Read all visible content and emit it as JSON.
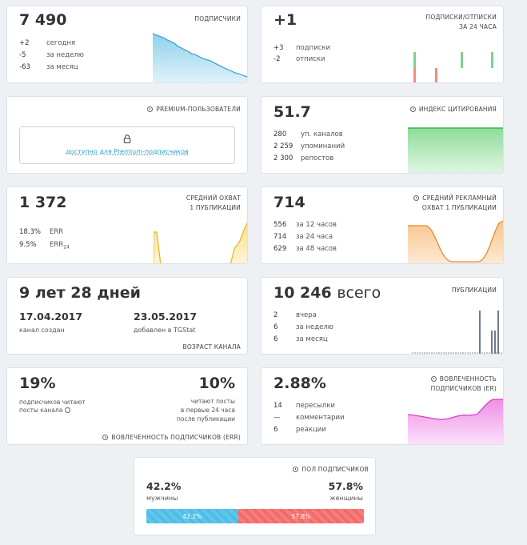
{
  "subscribers": {
    "value": "7 490",
    "header": "ПОДПИСЧИКИ",
    "rows": [
      {
        "value": "+2",
        "label": "сегодня"
      },
      {
        "value": "-5",
        "label": "за неделю"
      },
      {
        "value": "-63",
        "label": "за месяц"
      }
    ],
    "sparkline": [
      100,
      97,
      94,
      91,
      86,
      83,
      79,
      72,
      68,
      64,
      60,
      55,
      53,
      49,
      45,
      42,
      40,
      36,
      32,
      28,
      24,
      20,
      17,
      13,
      11,
      8,
      5,
      3
    ]
  },
  "subs_unsubs": {
    "value": "+1",
    "header1": "ПОДПИСКИ/ОТПИСКИ",
    "header2": "ЗА 24 ЧАСА",
    "rows": [
      {
        "value": "+3",
        "label": "подписки"
      },
      {
        "value": "-2",
        "label": "отписки"
      }
    ],
    "bars": [
      {
        "pos": 1,
        "neg": 1
      },
      {
        "pos": 0,
        "neg": 1
      },
      {
        "pos": 1,
        "neg": 0
      },
      {
        "pos": 1,
        "neg": 0
      }
    ],
    "colors": {
      "pos": "#7ed28a",
      "neg": "#ef8d7e"
    }
  },
  "premium": {
    "header": "PREMIUM-ПОЛЬЗОВАТЕЛИ",
    "link": "доступно для Premium-подписчиков"
  },
  "citation": {
    "value": "51.7",
    "header": "ИНДЕКС ЦИТИРОВАНИЯ",
    "rows": [
      {
        "value": "280",
        "label": "уп. каналов"
      },
      {
        "value": "2 259",
        "label": "упоминаний"
      },
      {
        "value": "2 300",
        "label": "репостов"
      }
    ]
  },
  "reach": {
    "value": "1 372",
    "header1": "СРЕДНИЙ ОХВАТ",
    "header2": "1 ПУБЛИКАЦИИ",
    "rows": [
      {
        "value": "18.3%",
        "label": "ERR",
        "sub": ""
      },
      {
        "value": "9.5%",
        "label": "ERR",
        "sub": "24"
      }
    ]
  },
  "ad_reach": {
    "value": "714",
    "header1": "СРЕДНИЙ РЕКЛАМНЫЙ",
    "header2": "ОХВАТ 1 ПУБЛИКАЦИИ",
    "rows": [
      {
        "value": "556",
        "label": "за 12 часов"
      },
      {
        "value": "714",
        "label": "за 24 часа"
      },
      {
        "value": "629",
        "label": "за 48 часов"
      }
    ]
  },
  "age": {
    "value": "9 лет 28 дней",
    "created_date": "17.04.2017",
    "created_label": "канал создан",
    "added_date": "23.05.2017",
    "added_label": "добавлен в TGStat",
    "footer": "ВОЗРАСТ КАНАЛА"
  },
  "posts": {
    "value": "10 246",
    "unit": "всего",
    "header": "ПУБЛИКАЦИИ",
    "rows": [
      {
        "value": "2",
        "label": "вчера"
      },
      {
        "value": "6",
        "label": "за неделю"
      },
      {
        "value": "6",
        "label": "за месяц"
      }
    ]
  },
  "err": {
    "value_left": "19%",
    "desc_left": "подписчиков читают посты канала",
    "value_right": "10%",
    "desc_right1": "читают посты",
    "desc_right2": "в первые 24 часа",
    "desc_right3": "после публикации",
    "footer": "ВОВЛЕЧЕННОСТЬ ПОДПИСЧИКОВ (ERR)"
  },
  "er": {
    "value": "2.88%",
    "header1": "ВОВЛЕЧЕННОСТЬ",
    "header2": "ПОДПИСЧИКОВ (ER)",
    "rows": [
      {
        "value": "14",
        "label": "пересылки"
      },
      {
        "value": "—",
        "label": "комментарии"
      },
      {
        "value": "6",
        "label": "реакции"
      }
    ]
  },
  "gender": {
    "header": "ПОЛ ПОДПИСЧИКОВ",
    "male_value": "42.2%",
    "male_label": "мужчины",
    "female_value": "57.8%",
    "female_label": "женщины",
    "male_fraction": 0.422,
    "bar_male_label": "42.2%",
    "bar_female_label": "57.8%"
  }
}
